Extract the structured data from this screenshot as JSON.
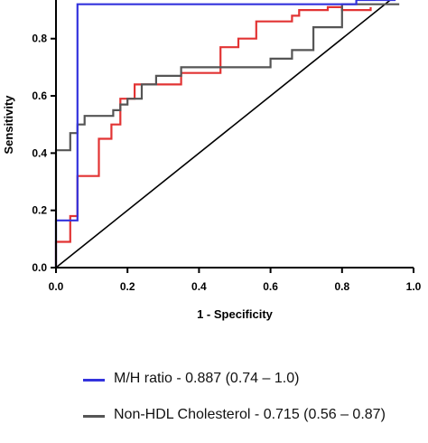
{
  "chart_data": {
    "type": "line",
    "xlabel": "1 - Specificity",
    "ylabel": "Sensitivity",
    "xlim": [
      0,
      1.0
    ],
    "ylim": [
      0,
      0.92
    ],
    "x_ticks": [
      "0.0",
      "0.2",
      "0.4",
      "0.6",
      "0.8",
      "1.0"
    ],
    "y_ticks": [
      "0.0",
      "0.2",
      "0.4",
      "0.6",
      "0.8"
    ],
    "grid": false,
    "legend_position": "bottom",
    "reference_line": {
      "x": [
        0,
        1.0
      ],
      "y": [
        0,
        1.0
      ],
      "color": "#000000"
    },
    "series": [
      {
        "name": "M/H ratio - 0.887 (0.74 – 1.0)",
        "color": "#3333dd",
        "x": [
          0,
          0,
          0.06,
          0.06,
          0.84,
          0.84,
          0.95
        ],
        "y": [
          0,
          0.165,
          0.165,
          0.92,
          0.92,
          0.935,
          0.935
        ]
      },
      {
        "name": "Non-HDL Cholesterol - 0.715 (0.56 – 0.87)",
        "color": "#555555",
        "x": [
          0,
          0,
          0.04,
          0.04,
          0.06,
          0.06,
          0.08,
          0.08,
          0.16,
          0.16,
          0.18,
          0.18,
          0.2,
          0.2,
          0.24,
          0.24,
          0.28,
          0.28,
          0.35,
          0.35,
          0.6,
          0.6,
          0.66,
          0.66,
          0.72,
          0.72,
          0.8,
          0.8,
          0.96
        ],
        "y": [
          0,
          0.41,
          0.41,
          0.47,
          0.47,
          0.5,
          0.5,
          0.53,
          0.53,
          0.55,
          0.55,
          0.57,
          0.57,
          0.59,
          0.59,
          0.64,
          0.64,
          0.67,
          0.67,
          0.7,
          0.7,
          0.73,
          0.73,
          0.76,
          0.76,
          0.84,
          0.84,
          0.92,
          0.92
        ]
      },
      {
        "name": "",
        "color": "#e23333",
        "x": [
          0,
          0,
          0.04,
          0.04,
          0.06,
          0.06,
          0.12,
          0.12,
          0.155,
          0.155,
          0.18,
          0.18,
          0.22,
          0.22,
          0.24,
          0.24,
          0.35,
          0.35,
          0.46,
          0.46,
          0.51,
          0.51,
          0.56,
          0.56,
          0.66,
          0.66,
          0.68,
          0.68,
          0.76,
          0.76,
          0.8,
          0.8,
          0.88,
          0.88
        ],
        "y": [
          0,
          0.09,
          0.09,
          0.18,
          0.18,
          0.32,
          0.32,
          0.45,
          0.45,
          0.5,
          0.5,
          0.59,
          0.59,
          0.64,
          0.64,
          0.64,
          0.64,
          0.68,
          0.68,
          0.77,
          0.77,
          0.8,
          0.8,
          0.86,
          0.86,
          0.88,
          0.88,
          0.9,
          0.9,
          0.91,
          0.91,
          0.9,
          0.9,
          0.91
        ]
      }
    ]
  }
}
